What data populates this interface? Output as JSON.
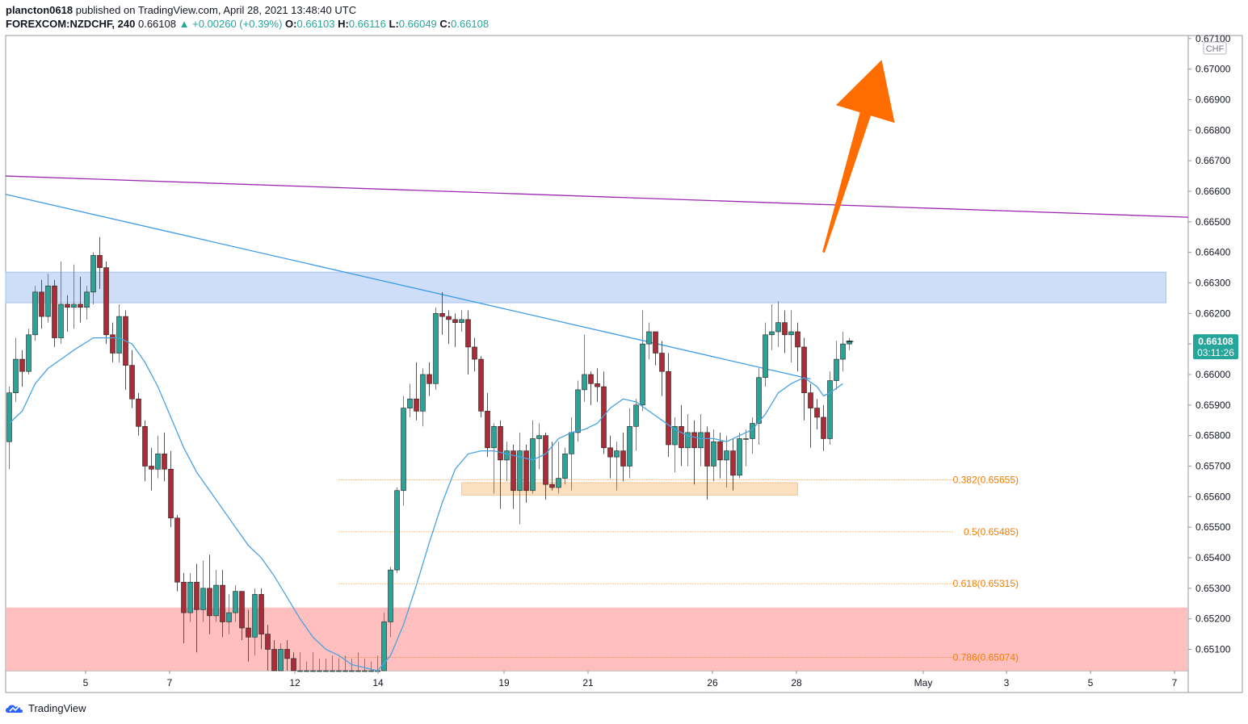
{
  "header": {
    "user": "plancton0618",
    "published_text": "published on TradingView.com, April 28, 2021 13:48:40 UTC",
    "symbol": "FOREXCOM:NZDCHF, 240",
    "last": "0.66108",
    "change": "+0.00260 (+0.39%)",
    "o_label": "O:",
    "o": "0.66103",
    "h_label": "H:",
    "h": "0.66116",
    "l_label": "L:",
    "l": "0.66049",
    "c_label": "C:",
    "c": "0.66108"
  },
  "price_axis": {
    "currency": "CHF",
    "last_price_label": "0.66108",
    "countdown_label": "03:11:26"
  },
  "footer": {
    "brand": "TradingView"
  },
  "colors": {
    "up": "#26a69a",
    "down": "#b22833",
    "ma": "#4aa3df",
    "trend_blue": "#3d9be9",
    "trend_purple": "#9c27b0",
    "resistance_zone": "#c5d8f7",
    "support_zone": "#ffb8b8",
    "demand_zone": "#fbd9b4",
    "fib": "#f57c00",
    "arrow": "#ff6d00"
  },
  "chart_data": {
    "type": "candlestick",
    "ylim": [
      0.6503,
      0.6711
    ],
    "y_ticks": [
      "0.67100",
      "0.67000",
      "0.66900",
      "0.66800",
      "0.66700",
      "0.66600",
      "0.66500",
      "0.66400",
      "0.66300",
      "0.66200",
      "0.66100",
      "0.66000",
      "0.65900",
      "0.65800",
      "0.65700",
      "0.65600",
      "0.65500",
      "0.65400",
      "0.65300",
      "0.65200",
      "0.65100"
    ],
    "x_ticks": [
      "5",
      "7",
      "12",
      "14",
      "19",
      "21",
      "26",
      "28",
      "May",
      "3",
      "5",
      "7"
    ],
    "candles": [
      [
        0.6578,
        0.6594,
        0.6569,
        0.6596
      ],
      [
        0.6594,
        0.6605,
        0.6591,
        0.6612
      ],
      [
        0.6605,
        0.6601,
        0.6596,
        0.6608
      ],
      [
        0.6601,
        0.6613,
        0.66,
        0.6615
      ],
      [
        0.6613,
        0.6627,
        0.6611,
        0.6629
      ],
      [
        0.6627,
        0.6619,
        0.6615,
        0.6631
      ],
      [
        0.6619,
        0.6629,
        0.6617,
        0.6633
      ],
      [
        0.6629,
        0.6612,
        0.6609,
        0.6631
      ],
      [
        0.6612,
        0.6623,
        0.661,
        0.6637
      ],
      [
        0.6623,
        0.6622,
        0.6614,
        0.6626
      ],
      [
        0.6622,
        0.6623,
        0.6615,
        0.6636
      ],
      [
        0.6623,
        0.6622,
        0.6617,
        0.6632
      ],
      [
        0.6622,
        0.6627,
        0.6618,
        0.6629
      ],
      [
        0.6627,
        0.6639,
        0.6623,
        0.664
      ],
      [
        0.6639,
        0.6635,
        0.6628,
        0.6645
      ],
      [
        0.6635,
        0.6613,
        0.661,
        0.6637
      ],
      [
        0.6613,
        0.6607,
        0.6604,
        0.6617
      ],
      [
        0.6607,
        0.6619,
        0.6604,
        0.6623
      ],
      [
        0.6619,
        0.6603,
        0.6595,
        0.6621
      ],
      [
        0.6603,
        0.6592,
        0.6589,
        0.6608
      ],
      [
        0.6592,
        0.6583,
        0.658,
        0.6594
      ],
      [
        0.6583,
        0.657,
        0.6565,
        0.6585
      ],
      [
        0.657,
        0.6569,
        0.6562,
        0.6576
      ],
      [
        0.6569,
        0.6574,
        0.6566,
        0.658
      ],
      [
        0.6574,
        0.6569,
        0.6565,
        0.6581
      ],
      [
        0.6569,
        0.6553,
        0.655,
        0.6575
      ],
      [
        0.6553,
        0.6532,
        0.6529,
        0.6554
      ],
      [
        0.6532,
        0.6522,
        0.6512,
        0.6535
      ],
      [
        0.6522,
        0.6532,
        0.6519,
        0.6535
      ],
      [
        0.6532,
        0.6523,
        0.6509,
        0.6538
      ],
      [
        0.6523,
        0.653,
        0.6519,
        0.6539
      ],
      [
        0.653,
        0.6521,
        0.6515,
        0.6541
      ],
      [
        0.6521,
        0.6531,
        0.6519,
        0.6536
      ],
      [
        0.6531,
        0.6519,
        0.6514,
        0.6536
      ],
      [
        0.6519,
        0.6522,
        0.6515,
        0.6528
      ],
      [
        0.6522,
        0.6529,
        0.6519,
        0.6531
      ],
      [
        0.6529,
        0.6517,
        0.6513,
        0.6529
      ],
      [
        0.6517,
        0.6514,
        0.6506,
        0.6523
      ],
      [
        0.6514,
        0.6528,
        0.6508,
        0.653
      ],
      [
        0.6528,
        0.6515,
        0.651,
        0.653
      ],
      [
        0.6515,
        0.651,
        0.6503,
        0.6518
      ],
      [
        0.651,
        0.6503,
        0.6503,
        0.6513
      ],
      [
        0.6503,
        0.651,
        0.6503,
        0.6512
      ],
      [
        0.651,
        0.6507,
        0.6503,
        0.6513
      ],
      [
        0.6507,
        0.6503,
        0.6503,
        0.6509
      ],
      [
        0.6503,
        0.6503,
        0.6503,
        0.6509
      ],
      [
        0.6503,
        0.6503,
        0.6503,
        0.6506
      ],
      [
        0.6503,
        0.6503,
        0.6503,
        0.6509
      ],
      [
        0.6503,
        0.6503,
        0.6503,
        0.6507
      ],
      [
        0.6503,
        0.6503,
        0.6503,
        0.6507
      ],
      [
        0.6503,
        0.6503,
        0.6503,
        0.6508
      ],
      [
        0.6503,
        0.6503,
        0.6503,
        0.6507
      ],
      [
        0.6503,
        0.6503,
        0.6503,
        0.6508
      ],
      [
        0.6503,
        0.6503,
        0.6503,
        0.6507
      ],
      [
        0.6503,
        0.6503,
        0.6503,
        0.6509
      ],
      [
        0.6503,
        0.6503,
        0.6503,
        0.6507
      ],
      [
        0.6503,
        0.6503,
        0.6503,
        0.6506
      ],
      [
        0.6503,
        0.6503,
        0.6503,
        0.6508
      ],
      [
        0.6503,
        0.6519,
        0.6503,
        0.6522
      ],
      [
        0.6519,
        0.6536,
        0.6514,
        0.6537
      ],
      [
        0.6536,
        0.6562,
        0.6535,
        0.6563
      ],
      [
        0.6562,
        0.6589,
        0.6557,
        0.6593
      ],
      [
        0.6589,
        0.6592,
        0.6586,
        0.6597
      ],
      [
        0.6592,
        0.6588,
        0.6585,
        0.6604
      ],
      [
        0.6588,
        0.66,
        0.6583,
        0.6602
      ],
      [
        0.66,
        0.6597,
        0.6593,
        0.6604
      ],
      [
        0.6597,
        0.662,
        0.6595,
        0.6622
      ],
      [
        0.662,
        0.6619,
        0.6613,
        0.6627
      ],
      [
        0.6619,
        0.6618,
        0.661,
        0.6621
      ],
      [
        0.6618,
        0.6617,
        0.6609,
        0.662
      ],
      [
        0.6617,
        0.6618,
        0.6614,
        0.6621
      ],
      [
        0.6618,
        0.6609,
        0.66,
        0.6621
      ],
      [
        0.6609,
        0.6605,
        0.6601,
        0.6612
      ],
      [
        0.6605,
        0.6588,
        0.6586,
        0.6606
      ],
      [
        0.6588,
        0.6576,
        0.6573,
        0.6594
      ],
      [
        0.6576,
        0.6583,
        0.6561,
        0.6584
      ],
      [
        0.6583,
        0.6572,
        0.6556,
        0.6585
      ],
      [
        0.6572,
        0.6575,
        0.6565,
        0.6578
      ],
      [
        0.6575,
        0.6562,
        0.6556,
        0.6577
      ],
      [
        0.6562,
        0.6575,
        0.6551,
        0.6581
      ],
      [
        0.6575,
        0.6562,
        0.6558,
        0.6577
      ],
      [
        0.6562,
        0.6579,
        0.6561,
        0.6585
      ],
      [
        0.6579,
        0.658,
        0.6569,
        0.6584
      ],
      [
        0.658,
        0.6564,
        0.6559,
        0.6581
      ],
      [
        0.6564,
        0.6563,
        0.6562,
        0.6578
      ],
      [
        0.6563,
        0.6566,
        0.6561,
        0.6578
      ],
      [
        0.6566,
        0.6574,
        0.6564,
        0.6576
      ],
      [
        0.6574,
        0.6581,
        0.6562,
        0.6586
      ],
      [
        0.6581,
        0.6595,
        0.6578,
        0.6598
      ],
      [
        0.6595,
        0.66,
        0.6591,
        0.6613
      ],
      [
        0.66,
        0.6597,
        0.659,
        0.6601
      ],
      [
        0.6597,
        0.6596,
        0.6591,
        0.6602
      ],
      [
        0.6596,
        0.6576,
        0.6574,
        0.6601
      ],
      [
        0.6576,
        0.6573,
        0.6566,
        0.658
      ],
      [
        0.6573,
        0.6575,
        0.6562,
        0.6578
      ],
      [
        0.6575,
        0.657,
        0.6565,
        0.6581
      ],
      [
        0.657,
        0.6583,
        0.6566,
        0.6589
      ],
      [
        0.6583,
        0.659,
        0.6575,
        0.6592
      ],
      [
        0.659,
        0.661,
        0.6588,
        0.6621
      ],
      [
        0.661,
        0.6614,
        0.6605,
        0.6617
      ],
      [
        0.6614,
        0.6607,
        0.6603,
        0.6614
      ],
      [
        0.6607,
        0.6601,
        0.6593,
        0.6611
      ],
      [
        0.6601,
        0.6577,
        0.6573,
        0.6607
      ],
      [
        0.6577,
        0.6583,
        0.6568,
        0.6586
      ],
      [
        0.6583,
        0.6576,
        0.657,
        0.659
      ],
      [
        0.6576,
        0.6581,
        0.657,
        0.6587
      ],
      [
        0.6581,
        0.6576,
        0.6564,
        0.6585
      ],
      [
        0.6576,
        0.6581,
        0.657,
        0.6587
      ],
      [
        0.6581,
        0.657,
        0.6559,
        0.6583
      ],
      [
        0.657,
        0.6578,
        0.6565,
        0.6582
      ],
      [
        0.6578,
        0.6572,
        0.6566,
        0.6581
      ],
      [
        0.6572,
        0.6575,
        0.6563,
        0.658
      ],
      [
        0.6575,
        0.6567,
        0.6562,
        0.6579
      ],
      [
        0.6567,
        0.6579,
        0.6566,
        0.6581
      ],
      [
        0.6579,
        0.6579,
        0.657,
        0.6582
      ],
      [
        0.6579,
        0.6584,
        0.6574,
        0.6586
      ],
      [
        0.6584,
        0.6599,
        0.6577,
        0.6602
      ],
      [
        0.6599,
        0.6613,
        0.6596,
        0.6617
      ],
      [
        0.6613,
        0.6614,
        0.6608,
        0.6623
      ],
      [
        0.6614,
        0.6617,
        0.6609,
        0.6624
      ],
      [
        0.6617,
        0.6613,
        0.6607,
        0.6621
      ],
      [
        0.6613,
        0.6614,
        0.6604,
        0.6621
      ],
      [
        0.6614,
        0.6609,
        0.6601,
        0.6617
      ],
      [
        0.6609,
        0.6594,
        0.6585,
        0.6612
      ],
      [
        0.6594,
        0.6589,
        0.6576,
        0.6597
      ],
      [
        0.6589,
        0.6586,
        0.6582,
        0.6592
      ],
      [
        0.6586,
        0.6579,
        0.6575,
        0.659
      ],
      [
        0.6579,
        0.6598,
        0.6577,
        0.6601
      ],
      [
        0.6598,
        0.6605,
        0.6595,
        0.6611
      ],
      [
        0.6605,
        0.661,
        0.6601,
        0.6614
      ],
      [
        0.661,
        0.6611,
        0.6608,
        0.6612
      ]
    ],
    "moving_average": [
      [
        0,
        0.6584
      ],
      [
        2,
        0.6588
      ],
      [
        4,
        0.6597
      ],
      [
        6,
        0.6602
      ],
      [
        8,
        0.6605
      ],
      [
        10,
        0.6608
      ],
      [
        13,
        0.6612
      ],
      [
        15,
        0.6612
      ],
      [
        17,
        0.6612
      ],
      [
        19,
        0.661
      ],
      [
        21,
        0.6604
      ],
      [
        23,
        0.6596
      ],
      [
        25,
        0.6586
      ],
      [
        27,
        0.6576
      ],
      [
        29,
        0.6568
      ],
      [
        31,
        0.6562
      ],
      [
        33,
        0.6556
      ],
      [
        35,
        0.655
      ],
      [
        37,
        0.6544
      ],
      [
        39,
        0.654
      ],
      [
        41,
        0.6534
      ],
      [
        43,
        0.6527
      ],
      [
        45,
        0.652
      ],
      [
        47,
        0.6514
      ],
      [
        49,
        0.651
      ],
      [
        51,
        0.6508
      ],
      [
        53,
        0.6505
      ],
      [
        55,
        0.6504
      ],
      [
        57,
        0.6503
      ],
      [
        59,
        0.6508
      ],
      [
        61,
        0.6518
      ],
      [
        63,
        0.6531
      ],
      [
        65,
        0.6545
      ],
      [
        67,
        0.6558
      ],
      [
        69,
        0.6569
      ],
      [
        71,
        0.6574
      ],
      [
        73,
        0.6575
      ],
      [
        75,
        0.6575
      ],
      [
        77,
        0.6574
      ],
      [
        79,
        0.6573
      ],
      [
        81,
        0.6572
      ],
      [
        83,
        0.6574
      ],
      [
        85,
        0.6579
      ],
      [
        87,
        0.6581
      ],
      [
        89,
        0.6582
      ],
      [
        91,
        0.6584
      ],
      [
        93,
        0.6589
      ],
      [
        95,
        0.6592
      ],
      [
        97,
        0.6591
      ],
      [
        99,
        0.6588
      ],
      [
        101,
        0.6585
      ],
      [
        103,
        0.6582
      ],
      [
        105,
        0.658
      ],
      [
        107,
        0.6579
      ],
      [
        109,
        0.6579
      ],
      [
        111,
        0.6578
      ],
      [
        113,
        0.658
      ],
      [
        115,
        0.6582
      ],
      [
        117,
        0.6587
      ],
      [
        119,
        0.6594
      ],
      [
        121,
        0.6597
      ],
      [
        123,
        0.6599
      ],
      [
        125,
        0.6596
      ],
      [
        126,
        0.6593
      ],
      [
        127,
        0.6594
      ],
      [
        129,
        0.6597
      ]
    ],
    "trendlines": [
      {
        "color": "purple",
        "from": [
          -1,
          0.6665
        ],
        "to": [
          184,
          0.66515
        ]
      },
      {
        "color": "blue",
        "from": [
          -1,
          0.6659
        ],
        "to": [
          124,
          0.65985
        ]
      }
    ],
    "zones": [
      {
        "kind": "resistance",
        "price_range": [
          0.66235,
          0.66335
        ],
        "from_bar": -1,
        "to_bar": 179
      },
      {
        "kind": "support",
        "price_range": [
          0.6503,
          0.65237
        ],
        "from_bar": -1,
        "to_bar": 184
      },
      {
        "kind": "demand",
        "price_range": [
          0.65605,
          0.65646
        ],
        "from_bar": 70,
        "to_bar": 122
      }
    ],
    "fibonacci": [
      {
        "label": "0.382(0.65655)",
        "price": 0.65655
      },
      {
        "label": "0.5(0.65485)",
        "price": 0.65485
      },
      {
        "label": "0.618(0.65315)",
        "price": 0.65315
      },
      {
        "label": "0.786(0.65074)",
        "price": 0.65074
      }
    ],
    "fib_bar_range": [
      51,
      146
    ],
    "arrow": {
      "from": [
        126,
        0.664
      ],
      "to": [
        135,
        0.6703
      ]
    },
    "last_price": 0.66108
  }
}
